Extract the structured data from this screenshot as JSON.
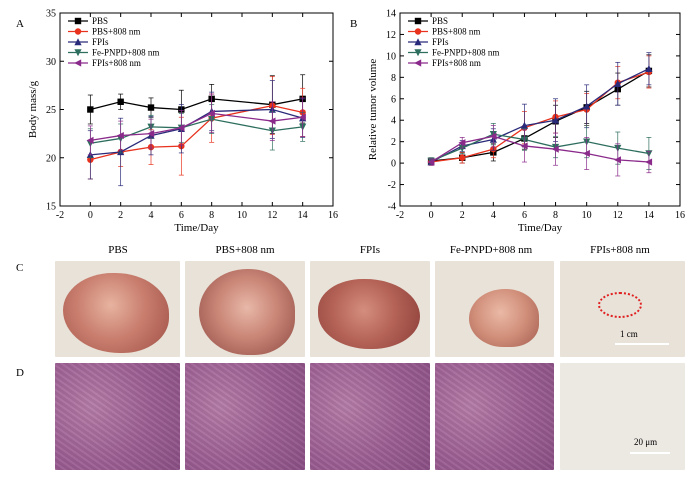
{
  "panel_letters": [
    "A",
    "B",
    "C",
    "D"
  ],
  "chart_data": [
    {
      "type": "line",
      "panel": "A",
      "xlabel": "Time/Day",
      "ylabel": "Body mass/g",
      "xlim": [
        -2,
        16
      ],
      "ylim": [
        15,
        35
      ],
      "xticks": [
        "-2",
        "0",
        "2",
        "4",
        "6",
        "8",
        "10",
        "12",
        "14",
        "16"
      ],
      "yticks": [
        "15",
        "20",
        "25",
        "30",
        "35"
      ],
      "x": [
        0,
        2,
        4,
        6,
        8,
        12,
        14
      ],
      "legend_position": "top-left",
      "series": [
        {
          "name": "PBS",
          "color": "#000000",
          "marker": "square",
          "values": [
            25.0,
            25.8,
            25.2,
            25.0,
            26.1,
            25.5,
            26.1
          ],
          "err": [
            1.5,
            0.8,
            1.0,
            2.0,
            1.5,
            3.0,
            2.5
          ]
        },
        {
          "name": "PBS+808 nm",
          "color": "#e8321e",
          "marker": "circle",
          "values": [
            19.8,
            20.6,
            21.1,
            21.2,
            24.1,
            25.4,
            24.7
          ],
          "err": [
            2.0,
            1.5,
            1.8,
            3.0,
            2.5,
            3.0,
            2.5
          ]
        },
        {
          "name": "FPIs",
          "color": "#2a2a7a",
          "marker": "triangle-up",
          "values": [
            20.3,
            20.6,
            22.3,
            23.0,
            24.8,
            25.0,
            24.1
          ],
          "err": [
            2.5,
            3.5,
            2.0,
            2.5,
            2.0,
            3.0,
            2.0
          ]
        },
        {
          "name": "Fe-PNPD+808 nm",
          "color": "#2e6e5e",
          "marker": "triangle-down",
          "values": [
            21.5,
            22.0,
            23.2,
            23.1,
            24.0,
            22.8,
            23.2
          ],
          "err": [
            1.5,
            1.5,
            1.2,
            1.5,
            1.5,
            2.0,
            1.5
          ]
        },
        {
          "name": "FPIs+808 nm",
          "color": "#8a2a8a",
          "marker": "triangle-left",
          "values": [
            21.8,
            22.3,
            22.5,
            23.1,
            24.6,
            23.8,
            24.2
          ],
          "err": [
            1.5,
            1.5,
            1.5,
            1.8,
            2.0,
            2.0,
            2.0
          ]
        }
      ]
    },
    {
      "type": "line",
      "panel": "B",
      "xlabel": "Time/Day",
      "ylabel": "Relative tumor volume",
      "xlim": [
        -2,
        16
      ],
      "ylim": [
        -4,
        14
      ],
      "xticks": [
        "-2",
        "0",
        "2",
        "4",
        "6",
        "8",
        "10",
        "12",
        "14",
        "16"
      ],
      "yticks": [
        "-4",
        "-2",
        "0",
        "2",
        "4",
        "6",
        "8",
        "10",
        "12",
        "14"
      ],
      "x": [
        0,
        2,
        4,
        6,
        8,
        10,
        12,
        14
      ],
      "legend_position": "top-left",
      "series": [
        {
          "name": "PBS",
          "color": "#000000",
          "marker": "square",
          "values": [
            0.2,
            0.5,
            1.0,
            2.3,
            3.9,
            5.2,
            6.9,
            8.6
          ],
          "err": [
            0.3,
            0.5,
            0.8,
            1.0,
            1.5,
            1.5,
            1.5,
            1.5
          ]
        },
        {
          "name": "PBS+808 nm",
          "color": "#e8321e",
          "marker": "circle",
          "values": [
            0.1,
            0.5,
            1.3,
            3.3,
            4.3,
            5.0,
            7.5,
            8.5
          ],
          "err": [
            0.3,
            0.5,
            0.8,
            1.5,
            1.5,
            1.5,
            1.5,
            1.5
          ]
        },
        {
          "name": "FPIs",
          "color": "#2a2a7a",
          "marker": "triangle-up",
          "values": [
            0.1,
            1.6,
            2.2,
            3.5,
            4.0,
            5.3,
            7.4,
            8.8
          ],
          "err": [
            0.3,
            0.5,
            1.0,
            2.0,
            2.0,
            2.0,
            2.0,
            1.5
          ]
        },
        {
          "name": "Fe-PNPD+808 nm",
          "color": "#2e6e5e",
          "marker": "triangle-down",
          "values": [
            0.2,
            1.4,
            2.7,
            2.2,
            1.5,
            2.0,
            1.4,
            0.9
          ],
          "err": [
            0.3,
            0.5,
            1.0,
            1.0,
            1.0,
            1.5,
            1.5,
            1.5
          ]
        },
        {
          "name": "FPIs+808 nm",
          "color": "#8a2a8a",
          "marker": "triangle-left",
          "values": [
            0.1,
            1.9,
            2.5,
            1.6,
            1.3,
            0.9,
            0.3,
            0.1
          ],
          "err": [
            0.3,
            0.5,
            1.0,
            1.5,
            1.5,
            1.5,
            1.5,
            1.0
          ]
        }
      ]
    }
  ],
  "photos": {
    "titles": [
      "PBS",
      "PBS+808 nm",
      "FPIs",
      "Fe-PNPD+808 nm",
      "FPIs+808 nm"
    ],
    "scalebar_c": "1 cm",
    "scalebar_d": "20 μm"
  }
}
